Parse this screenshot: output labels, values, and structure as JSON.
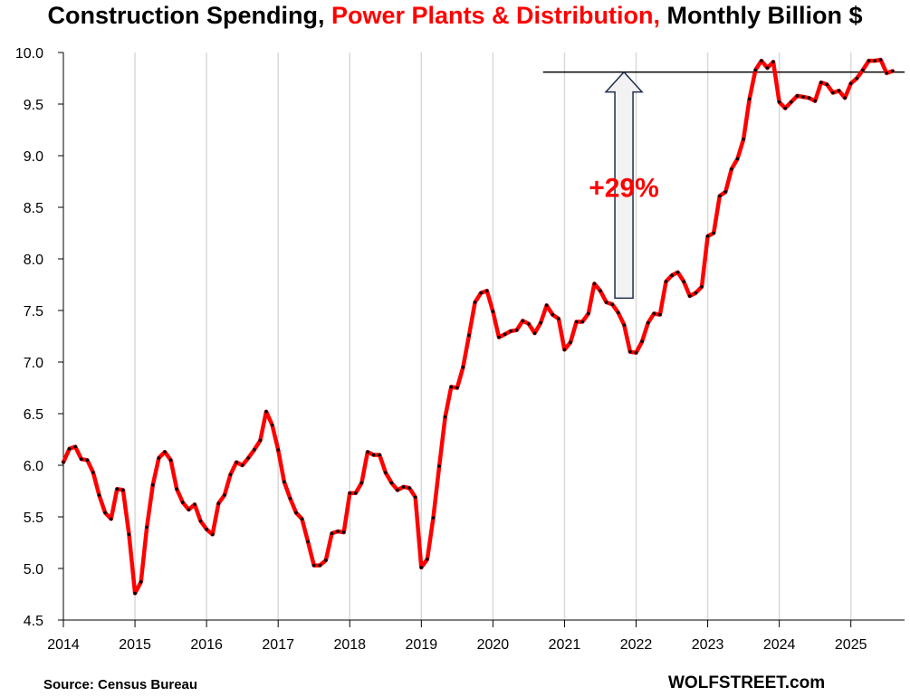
{
  "title": {
    "part1": "Construction Spending, ",
    "part2": "Power Plants & Distribution,",
    "part3": " Monthly Billion $"
  },
  "source": "Source: Census Bureau",
  "brand": "WOLFSTREET.com",
  "annotation": {
    "label": "+29%",
    "reference_value": 9.81,
    "arrow_base_value": 7.62,
    "arrow_date": 2021.83,
    "line_start_date": 2020.7
  },
  "colors": {
    "series": "#ff0000",
    "marker": "#000000",
    "grid": "#d9d9d9",
    "title_highlight": "#ff0000"
  },
  "chart_data": {
    "type": "line",
    "title": "Construction Spending, Power Plants & Distribution, Monthly Billion $",
    "xlabel": "",
    "ylabel": "",
    "ylim": [
      4.5,
      10.0
    ],
    "xlim": [
      2014.0,
      2025.75
    ],
    "yticks": [
      "4.5",
      "5.0",
      "5.5",
      "6.0",
      "6.5",
      "7.0",
      "7.5",
      "8.0",
      "8.5",
      "9.0",
      "9.5",
      "10.0"
    ],
    "xticks": [
      "2014",
      "2015",
      "2016",
      "2017",
      "2018",
      "2019",
      "2020",
      "2021",
      "2022",
      "2023",
      "2024",
      "2025"
    ],
    "grid": "vertical",
    "start": "2014-01",
    "series": [
      {
        "name": "Power Plants & Distribution",
        "values": [
          6.03,
          6.16,
          6.18,
          6.06,
          6.05,
          5.93,
          5.71,
          5.54,
          5.48,
          5.77,
          5.76,
          5.33,
          4.76,
          4.87,
          5.4,
          5.81,
          6.07,
          6.13,
          6.05,
          5.77,
          5.64,
          5.57,
          5.62,
          5.46,
          5.38,
          5.33,
          5.63,
          5.71,
          5.91,
          6.03,
          6.0,
          6.07,
          6.15,
          6.24,
          6.52,
          6.39,
          6.15,
          5.84,
          5.68,
          5.54,
          5.48,
          5.26,
          5.03,
          5.03,
          5.08,
          5.34,
          5.36,
          5.35,
          5.73,
          5.73,
          5.83,
          6.13,
          6.1,
          6.1,
          5.93,
          5.83,
          5.76,
          5.79,
          5.78,
          5.69,
          5.01,
          5.09,
          5.49,
          5.99,
          6.47,
          6.76,
          6.75,
          6.95,
          7.26,
          7.58,
          7.67,
          7.69,
          7.49,
          7.24,
          7.27,
          7.3,
          7.31,
          7.4,
          7.37,
          7.28,
          7.38,
          7.55,
          7.46,
          7.42,
          7.12,
          7.19,
          7.39,
          7.39,
          7.47,
          7.76,
          7.69,
          7.58,
          7.56,
          7.48,
          7.36,
          7.1,
          7.09,
          7.2,
          7.38,
          7.47,
          7.46,
          7.78,
          7.84,
          7.87,
          7.78,
          7.64,
          7.67,
          7.73,
          8.22,
          8.25,
          8.61,
          8.65,
          8.87,
          8.97,
          9.16,
          9.55,
          9.83,
          9.92,
          9.85,
          9.91,
          9.52,
          9.46,
          9.52,
          9.58,
          9.57,
          9.56,
          9.53,
          9.71,
          9.69,
          9.61,
          9.63,
          9.56,
          9.7,
          9.75,
          9.83,
          9.92,
          9.92,
          9.93,
          9.8,
          9.82
        ]
      }
    ]
  }
}
